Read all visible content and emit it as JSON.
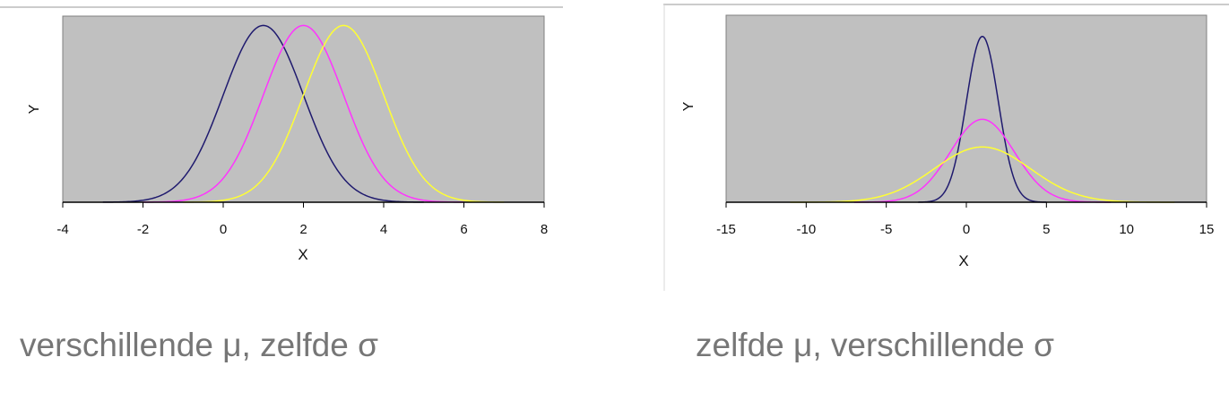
{
  "chart_data": [
    {
      "type": "line",
      "xlabel": "X",
      "ylabel": "Y",
      "xlim": [
        -4,
        8
      ],
      "xticks": [
        "-4",
        "-2",
        "0",
        "2",
        "4",
        "6",
        "8"
      ],
      "xtick_values": [
        -4,
        -2,
        0,
        2,
        4,
        6,
        8
      ],
      "ylim": [
        0,
        0.42
      ],
      "grid": false,
      "plot_background": "#c0c0c0",
      "series": [
        {
          "mu": 1,
          "sigma": 1,
          "x_range": [
            -3,
            5
          ],
          "color": "#1f1a6e"
        },
        {
          "mu": 2,
          "sigma": 1,
          "x_range": [
            -2,
            6
          ],
          "color": "#ff33ff"
        },
        {
          "mu": 3,
          "sigma": 1,
          "x_range": [
            -1,
            7
          ],
          "color": "#ffff33"
        }
      ]
    },
    {
      "type": "line",
      "xlabel": "X",
      "ylabel": "Y",
      "xlim": [
        -15,
        15
      ],
      "xticks": [
        "-15",
        "-10",
        "-5",
        "0",
        "5",
        "10",
        "15"
      ],
      "xtick_values": [
        -15,
        -10,
        -5,
        0,
        5,
        10,
        15
      ],
      "ylim": [
        0,
        0.45
      ],
      "grid": false,
      "plot_background": "#c0c0c0",
      "series": [
        {
          "mu": 1,
          "sigma": 1,
          "x_range": [
            -3,
            5
          ],
          "color": "#1f1a6e"
        },
        {
          "mu": 1,
          "sigma": 2,
          "x_range": [
            -7,
            9
          ],
          "color": "#ff33ff"
        },
        {
          "mu": 1,
          "sigma": 3,
          "x_range": [
            -11,
            13
          ],
          "color": "#ffff33"
        }
      ]
    }
  ],
  "captions": {
    "left": "verschillende μ, zelfde σ",
    "right": "zelfde μ, verschillende σ"
  }
}
